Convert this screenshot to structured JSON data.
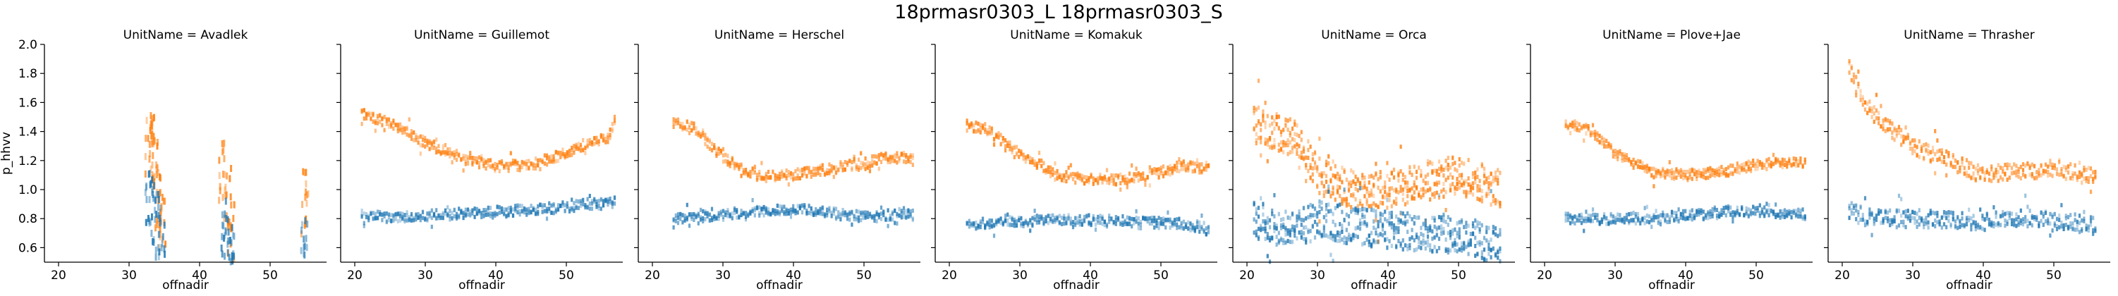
{
  "chart_data": {
    "type": "heatmap",
    "title": "18prmasr0303_L 18prmasr0303_S",
    "xlabel": "offnadir",
    "ylabel": "p_hhvv",
    "xlim": [
      18,
      58
    ],
    "ylim": [
      0.5,
      2.0
    ],
    "xticks": [
      20,
      30,
      40,
      50
    ],
    "yticks": [
      0.6,
      0.8,
      1.0,
      1.2,
      1.4,
      1.6,
      1.8,
      2.0
    ],
    "series_names": [
      "18prmasr0303_L",
      "18prmasr0303_S"
    ],
    "colors": {
      "18prmasr0303_L": "#1f77b4",
      "18prmasr0303_S": "#ff7f0e"
    },
    "panels": [
      {
        "title": "UnitName = Avadlek",
        "S": [
          [
            32.8,
            1.3
          ],
          [
            33.2,
            1.45
          ],
          [
            33.6,
            1.2
          ],
          [
            34.2,
            0.9
          ],
          [
            34.8,
            0.8
          ],
          [
            43.2,
            1.1
          ],
          [
            44.0,
            0.95
          ],
          [
            44.5,
            0.7
          ],
          [
            54.9,
            0.9
          ]
        ],
        "L": [
          [
            32.8,
            0.95
          ],
          [
            33.4,
            0.85
          ],
          [
            34.0,
            0.75
          ],
          [
            34.6,
            0.65
          ],
          [
            43.5,
            0.75
          ],
          [
            44.2,
            0.6
          ],
          [
            44.6,
            0.55
          ],
          [
            54.9,
            0.6
          ]
        ]
      },
      {
        "title": "UnitName = Guillemot",
        "S": [
          [
            21,
            1.52
          ],
          [
            25,
            1.46
          ],
          [
            30,
            1.32
          ],
          [
            35,
            1.22
          ],
          [
            40,
            1.16
          ],
          [
            45,
            1.17
          ],
          [
            50,
            1.25
          ],
          [
            53,
            1.32
          ],
          [
            56,
            1.35
          ],
          [
            57,
            1.5
          ]
        ],
        "L": [
          [
            21,
            0.82
          ],
          [
            25,
            0.81
          ],
          [
            30,
            0.82
          ],
          [
            35,
            0.83
          ],
          [
            40,
            0.85
          ],
          [
            45,
            0.86
          ],
          [
            50,
            0.88
          ],
          [
            53,
            0.9
          ],
          [
            56,
            0.9
          ],
          [
            57,
            0.92
          ]
        ]
      },
      {
        "title": "UnitName = Herschel",
        "S": [
          [
            23,
            1.46
          ],
          [
            26,
            1.42
          ],
          [
            30,
            1.22
          ],
          [
            35,
            1.09
          ],
          [
            40,
            1.1
          ],
          [
            45,
            1.14
          ],
          [
            50,
            1.18
          ],
          [
            53,
            1.22
          ],
          [
            56,
            1.22
          ],
          [
            57,
            1.2
          ]
        ],
        "L": [
          [
            23,
            0.8
          ],
          [
            26,
            0.81
          ],
          [
            30,
            0.83
          ],
          [
            35,
            0.85
          ],
          [
            40,
            0.87
          ],
          [
            45,
            0.84
          ],
          [
            50,
            0.81
          ],
          [
            53,
            0.82
          ],
          [
            56,
            0.84
          ],
          [
            57,
            0.82
          ]
        ]
      },
      {
        "title": "UnitName = Komakuk",
        "S": [
          [
            22.5,
            1.44
          ],
          [
            25,
            1.42
          ],
          [
            30,
            1.25
          ],
          [
            35,
            1.1
          ],
          [
            40,
            1.07
          ],
          [
            45,
            1.07
          ],
          [
            50,
            1.12
          ],
          [
            53,
            1.16
          ],
          [
            56,
            1.15
          ],
          [
            57,
            1.15
          ]
        ],
        "L": [
          [
            22.5,
            0.76
          ],
          [
            25,
            0.77
          ],
          [
            30,
            0.78
          ],
          [
            35,
            0.79
          ],
          [
            40,
            0.79
          ],
          [
            45,
            0.78
          ],
          [
            50,
            0.77
          ],
          [
            53,
            0.76
          ],
          [
            56,
            0.74
          ],
          [
            57,
            0.7
          ]
        ]
      },
      {
        "title": "UnitName = Orca",
        "S": [
          [
            21,
            1.45
          ],
          [
            24,
            1.4
          ],
          [
            27,
            1.35
          ],
          [
            30,
            1.1
          ],
          [
            35,
            1.0
          ],
          [
            40,
            1.0
          ],
          [
            45,
            1.05
          ],
          [
            50,
            1.1
          ],
          [
            53,
            1.05
          ],
          [
            56,
            1.0
          ]
        ],
        "L": [
          [
            21,
            0.8
          ],
          [
            24,
            0.75
          ],
          [
            27,
            0.72
          ],
          [
            30,
            0.8
          ],
          [
            35,
            0.75
          ],
          [
            40,
            0.72
          ],
          [
            45,
            0.7
          ],
          [
            50,
            0.7
          ],
          [
            53,
            0.65
          ],
          [
            56,
            0.6
          ]
        ]
      },
      {
        "title": "UnitName = Plove+Jae",
        "S": [
          [
            23,
            1.45
          ],
          [
            26,
            1.42
          ],
          [
            30,
            1.25
          ],
          [
            35,
            1.12
          ],
          [
            40,
            1.1
          ],
          [
            45,
            1.12
          ],
          [
            50,
            1.17
          ],
          [
            53,
            1.18
          ],
          [
            56,
            1.18
          ],
          [
            57,
            1.2
          ]
        ],
        "L": [
          [
            23,
            0.8
          ],
          [
            26,
            0.79
          ],
          [
            30,
            0.8
          ],
          [
            35,
            0.8
          ],
          [
            40,
            0.82
          ],
          [
            45,
            0.84
          ],
          [
            50,
            0.85
          ],
          [
            53,
            0.84
          ],
          [
            56,
            0.83
          ],
          [
            57,
            0.83
          ]
        ]
      },
      {
        "title": "UnitName = Thrasher",
        "S": [
          [
            21,
            1.85
          ],
          [
            23,
            1.6
          ],
          [
            26,
            1.45
          ],
          [
            30,
            1.3
          ],
          [
            35,
            1.2
          ],
          [
            40,
            1.1
          ],
          [
            45,
            1.12
          ],
          [
            50,
            1.15
          ],
          [
            53,
            1.12
          ],
          [
            56,
            1.08
          ]
        ],
        "L": [
          [
            21,
            0.85
          ],
          [
            23,
            0.82
          ],
          [
            26,
            0.8
          ],
          [
            30,
            0.8
          ],
          [
            35,
            0.79
          ],
          [
            40,
            0.78
          ],
          [
            45,
            0.8
          ],
          [
            50,
            0.79
          ],
          [
            53,
            0.77
          ],
          [
            56,
            0.75
          ]
        ]
      }
    ]
  }
}
